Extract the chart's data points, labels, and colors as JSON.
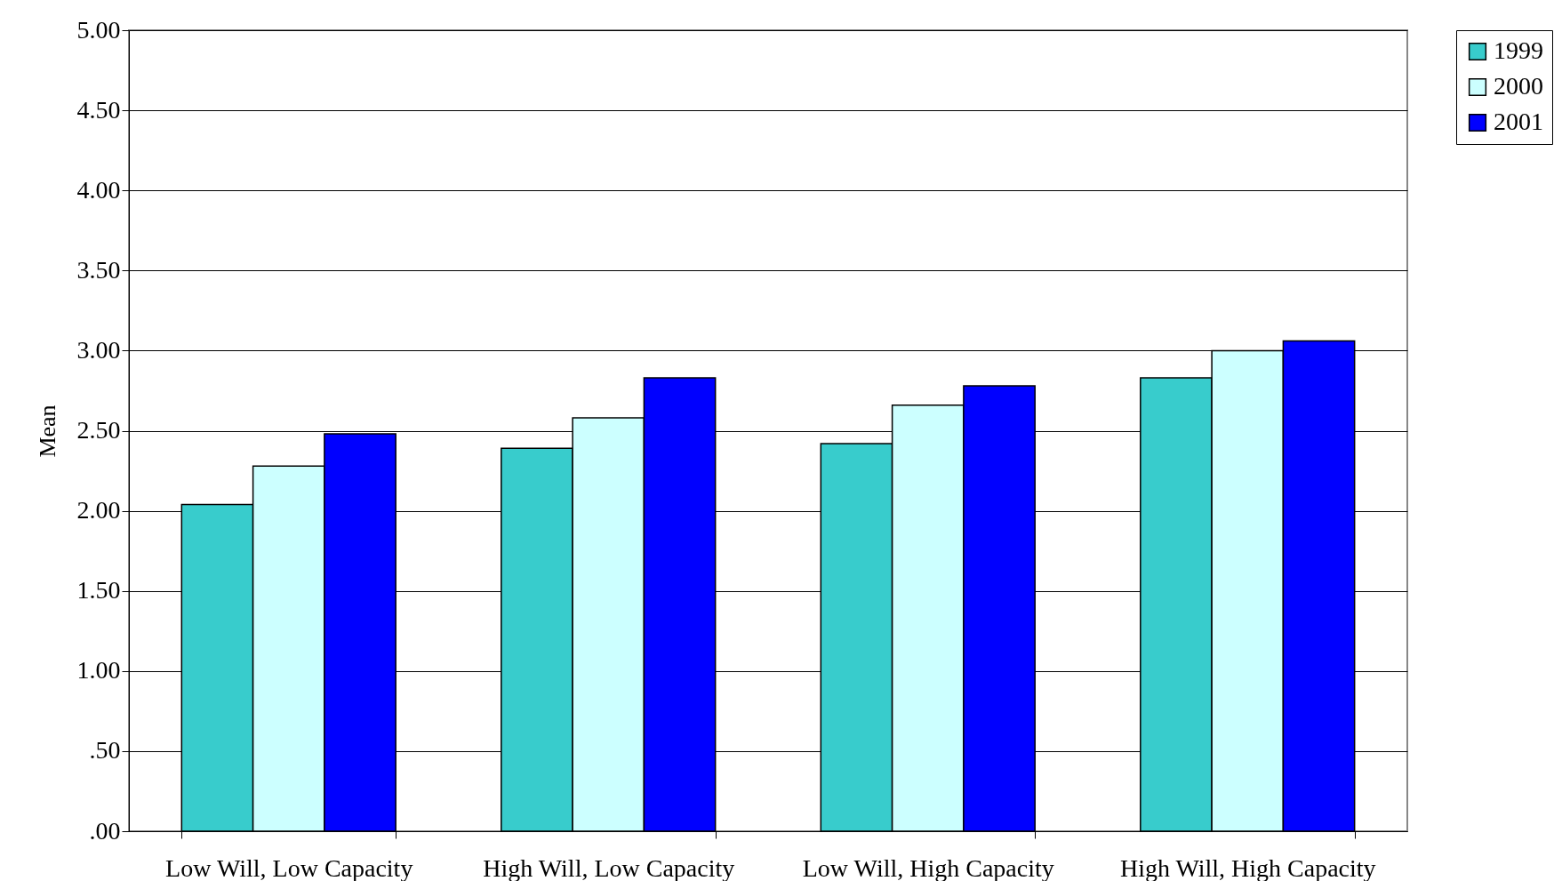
{
  "chart_data": {
    "type": "bar",
    "ylabel": "Mean",
    "categories": [
      "Low Will, Low Capacity",
      "High Will, Low Capacity",
      "Low Will, High Capacity",
      "High Will, High Capacity"
    ],
    "series": [
      {
        "name": "1999",
        "color": "#38cccc",
        "values": [
          2.04,
          2.39,
          2.42,
          2.83
        ]
      },
      {
        "name": "2000",
        "color": "#ccffff",
        "values": [
          2.28,
          2.58,
          2.66,
          3.0
        ]
      },
      {
        "name": "2001",
        "color": "#0000ff",
        "values": [
          2.48,
          2.83,
          2.78,
          3.06
        ]
      }
    ],
    "ylim": [
      0,
      5
    ],
    "yticks": [
      {
        "value": 0,
        "label": ".00"
      },
      {
        "value": 0.5,
        "label": ".50"
      },
      {
        "value": 1,
        "label": "1.00"
      },
      {
        "value": 1.5,
        "label": "1.50"
      },
      {
        "value": 2,
        "label": "2.00"
      },
      {
        "value": 2.5,
        "label": "2.50"
      },
      {
        "value": 3,
        "label": "3.00"
      },
      {
        "value": 3.5,
        "label": "3.50"
      },
      {
        "value": 4,
        "label": "4.00"
      },
      {
        "value": 4.5,
        "label": "4.50"
      },
      {
        "value": 5,
        "label": "5.00"
      }
    ],
    "grid": "y",
    "legend": "right"
  }
}
